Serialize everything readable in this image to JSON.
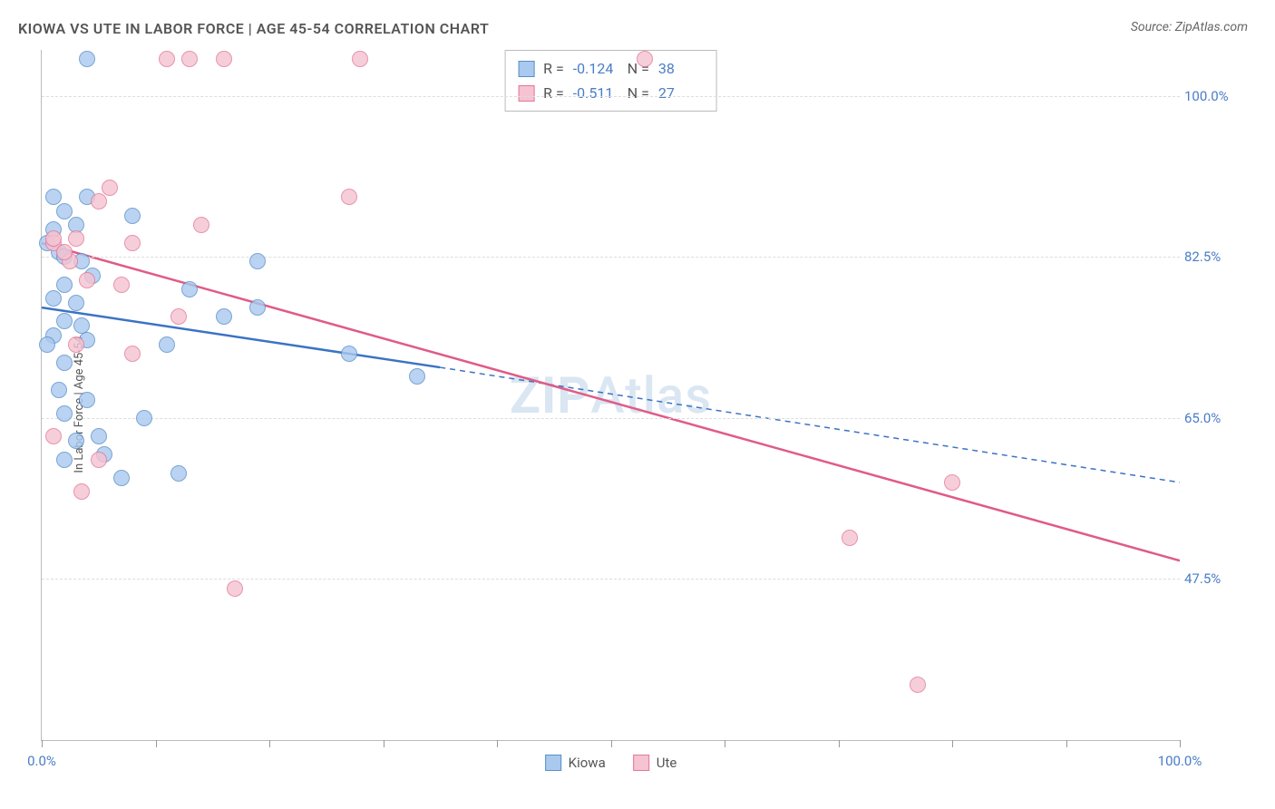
{
  "title": "KIOWA VS UTE IN LABOR FORCE | AGE 45-54 CORRELATION CHART",
  "source": "Source: ZipAtlas.com",
  "watermark": "ZIPAtlas",
  "y_axis_label": "In Labor Force | Age 45-54",
  "chart": {
    "type": "scatter",
    "background_color": "#ffffff",
    "grid_color": "#dddddd",
    "axis_color": "#bbbbbb",
    "tick_label_color": "#4a7dc7",
    "title_color": "#555555",
    "title_fontsize": 16,
    "label_fontsize": 13,
    "tick_fontsize": 15,
    "xlim": [
      0,
      100
    ],
    "ylim": [
      30,
      105
    ],
    "x_ticks": [
      0,
      10,
      20,
      30,
      40,
      50,
      60,
      70,
      80,
      90,
      100
    ],
    "x_tick_labels": {
      "0": "0.0%",
      "100": "100.0%"
    },
    "y_ticks": [
      47.5,
      65.0,
      82.5,
      100.0
    ],
    "y_tick_labels": [
      "47.5%",
      "65.0%",
      "82.5%",
      "100.0%"
    ],
    "point_radius": 9,
    "point_fill_opacity": 0.35,
    "point_stroke_width": 1.5,
    "trend_line_width": 2.5,
    "series": [
      {
        "name": "Kiowa",
        "color_fill": "#a9c9ef",
        "color_stroke": "#5a8fc8",
        "line_color": "#3b73c4",
        "r": "-0.124",
        "n": "38",
        "trend": {
          "x1": 0,
          "y1": 77,
          "x2_solid": 35,
          "y2_solid": 70.5,
          "x2_dashed": 100,
          "y2_dashed": 58
        },
        "points": [
          [
            4,
            104
          ],
          [
            1,
            89
          ],
          [
            4,
            89
          ],
          [
            2,
            87.5
          ],
          [
            8,
            87
          ],
          [
            3,
            86
          ],
          [
            1,
            85.5
          ],
          [
            0.5,
            84
          ],
          [
            1.5,
            83
          ],
          [
            2,
            82.5
          ],
          [
            3.5,
            82
          ],
          [
            19,
            82
          ],
          [
            4.5,
            80.5
          ],
          [
            2,
            79.5
          ],
          [
            13,
            79
          ],
          [
            1,
            78
          ],
          [
            19,
            77
          ],
          [
            3,
            77.5
          ],
          [
            16,
            76
          ],
          [
            2,
            75.5
          ],
          [
            3.5,
            75
          ],
          [
            1,
            74
          ],
          [
            4,
            73.5
          ],
          [
            0.5,
            73
          ],
          [
            11,
            73
          ],
          [
            27,
            72
          ],
          [
            2,
            71
          ],
          [
            33,
            69.5
          ],
          [
            1.5,
            68
          ],
          [
            4,
            67
          ],
          [
            2,
            65.5
          ],
          [
            9,
            65
          ],
          [
            5,
            63
          ],
          [
            3,
            62.5
          ],
          [
            5.5,
            61
          ],
          [
            2,
            60.5
          ],
          [
            12,
            59
          ],
          [
            7,
            58.5
          ]
        ]
      },
      {
        "name": "Ute",
        "color_fill": "#f5c3d1",
        "color_stroke": "#e47896",
        "line_color": "#e05b86",
        "r": "-0.511",
        "n": "27",
        "trend": {
          "x1": 0,
          "y1": 84,
          "x2_solid": 100,
          "y2_solid": 49.5,
          "x2_dashed": 100,
          "y2_dashed": 49.5
        },
        "points": [
          [
            11,
            104
          ],
          [
            13,
            104
          ],
          [
            16,
            104
          ],
          [
            28,
            104
          ],
          [
            53,
            104
          ],
          [
            6,
            90
          ],
          [
            5,
            88.5
          ],
          [
            14,
            86
          ],
          [
            3,
            84.5
          ],
          [
            27,
            89
          ],
          [
            1,
            84
          ],
          [
            8,
            84
          ],
          [
            2.5,
            82
          ],
          [
            4,
            80
          ],
          [
            7,
            79.5
          ],
          [
            12,
            76
          ],
          [
            3,
            73
          ],
          [
            8,
            72
          ],
          [
            1,
            63
          ],
          [
            5,
            60.5
          ],
          [
            3.5,
            57
          ],
          [
            80,
            58
          ],
          [
            71,
            52
          ],
          [
            17,
            46.5
          ],
          [
            77,
            36
          ],
          [
            1,
            84.5
          ],
          [
            2,
            83
          ]
        ]
      }
    ]
  },
  "stats_legend": {
    "r_label": "R =",
    "n_label": "N ="
  },
  "series_legend_labels": [
    "Kiowa",
    "Ute"
  ]
}
